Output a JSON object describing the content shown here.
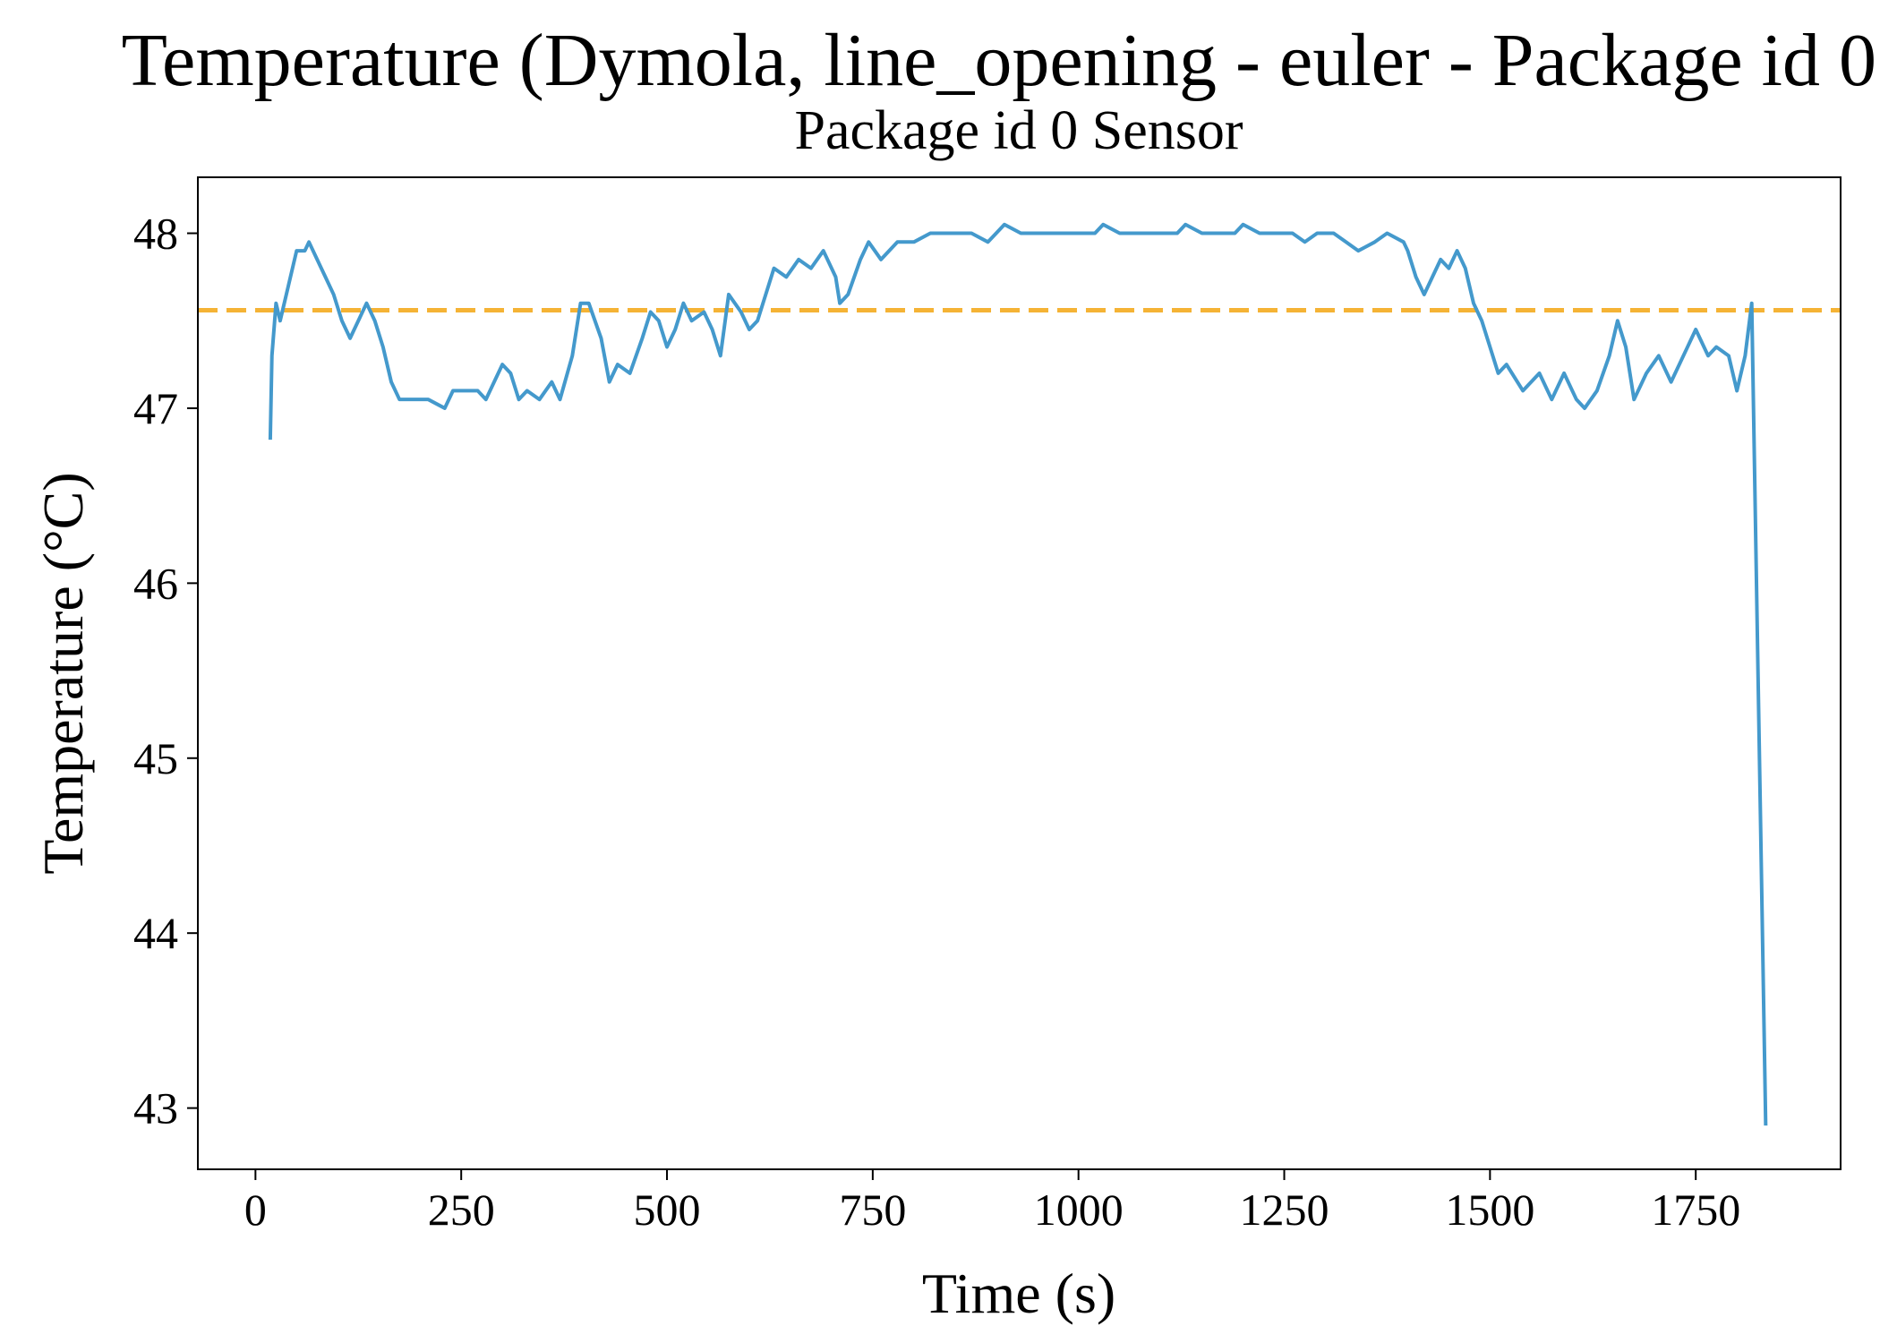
{
  "chart_data": {
    "type": "line",
    "title": "Temperature (Dymola, line_opening - euler - Package id 0",
    "subtitle": "Package id 0 Sensor",
    "x_label": "Time (s)",
    "y_label": "Temperature (°C)",
    "xlim": [
      -70,
      1926
    ],
    "ylim": [
      42.65,
      48.32
    ],
    "xticks": [
      0,
      250,
      500,
      750,
      1000,
      1250,
      1500,
      1750
    ],
    "yticks": [
      43,
      44,
      45,
      46,
      47,
      48
    ],
    "color": "#4499cc",
    "reference_line": {
      "value": 47.56,
      "color": "#f5b335"
    },
    "x": [
      18,
      20,
      25,
      30,
      40,
      50,
      60,
      65,
      75,
      85,
      95,
      105,
      115,
      125,
      135,
      145,
      155,
      165,
      175,
      200,
      210,
      230,
      240,
      270,
      280,
      290,
      300,
      310,
      320,
      330,
      345,
      360,
      370,
      385,
      395,
      405,
      420,
      430,
      440,
      455,
      470,
      480,
      490,
      500,
      510,
      520,
      530,
      545,
      555,
      565,
      575,
      590,
      600,
      610,
      620,
      630,
      645,
      660,
      675,
      690,
      705,
      710,
      720,
      735,
      745,
      760,
      780,
      800,
      820,
      870,
      890,
      910,
      930,
      1020,
      1030,
      1050,
      1120,
      1130,
      1150,
      1190,
      1200,
      1220,
      1260,
      1275,
      1290,
      1310,
      1325,
      1340,
      1360,
      1375,
      1395,
      1400,
      1410,
      1420,
      1430,
      1440,
      1450,
      1460,
      1470,
      1480,
      1490,
      1500,
      1510,
      1520,
      1540,
      1560,
      1575,
      1590,
      1605,
      1615,
      1630,
      1645,
      1655,
      1665,
      1675,
      1690,
      1705,
      1720,
      1740,
      1750,
      1765,
      1775,
      1790,
      1800,
      1810,
      1818,
      1835
    ],
    "values": [
      46.82,
      47.3,
      47.6,
      47.5,
      47.7,
      47.9,
      47.9,
      47.95,
      47.85,
      47.75,
      47.65,
      47.5,
      47.4,
      47.5,
      47.6,
      47.5,
      47.35,
      47.15,
      47.05,
      47.05,
      47.05,
      47.0,
      47.1,
      47.1,
      47.05,
      47.15,
      47.25,
      47.2,
      47.05,
      47.1,
      47.05,
      47.15,
      47.05,
      47.3,
      47.6,
      47.6,
      47.4,
      47.15,
      47.25,
      47.2,
      47.4,
      47.55,
      47.5,
      47.35,
      47.45,
      47.6,
      47.5,
      47.55,
      47.45,
      47.3,
      47.65,
      47.55,
      47.45,
      47.5,
      47.65,
      47.8,
      47.75,
      47.85,
      47.8,
      47.9,
      47.75,
      47.6,
      47.65,
      47.85,
      47.95,
      47.85,
      47.95,
      47.95,
      48.0,
      48.0,
      47.95,
      48.05,
      48.0,
      48.0,
      48.05,
      48.0,
      48.0,
      48.05,
      48.0,
      48.0,
      48.05,
      48.0,
      48.0,
      47.95,
      48.0,
      48.0,
      47.95,
      47.9,
      47.95,
      48.0,
      47.95,
      47.9,
      47.75,
      47.65,
      47.75,
      47.85,
      47.8,
      47.9,
      47.8,
      47.6,
      47.5,
      47.35,
      47.2,
      47.25,
      47.1,
      47.2,
      47.05,
      47.2,
      47.05,
      47.0,
      47.1,
      47.3,
      47.5,
      47.35,
      47.05,
      47.2,
      47.3,
      47.15,
      47.35,
      47.45,
      47.3,
      47.35,
      47.3,
      47.1,
      47.3,
      47.6,
      42.9
    ]
  }
}
